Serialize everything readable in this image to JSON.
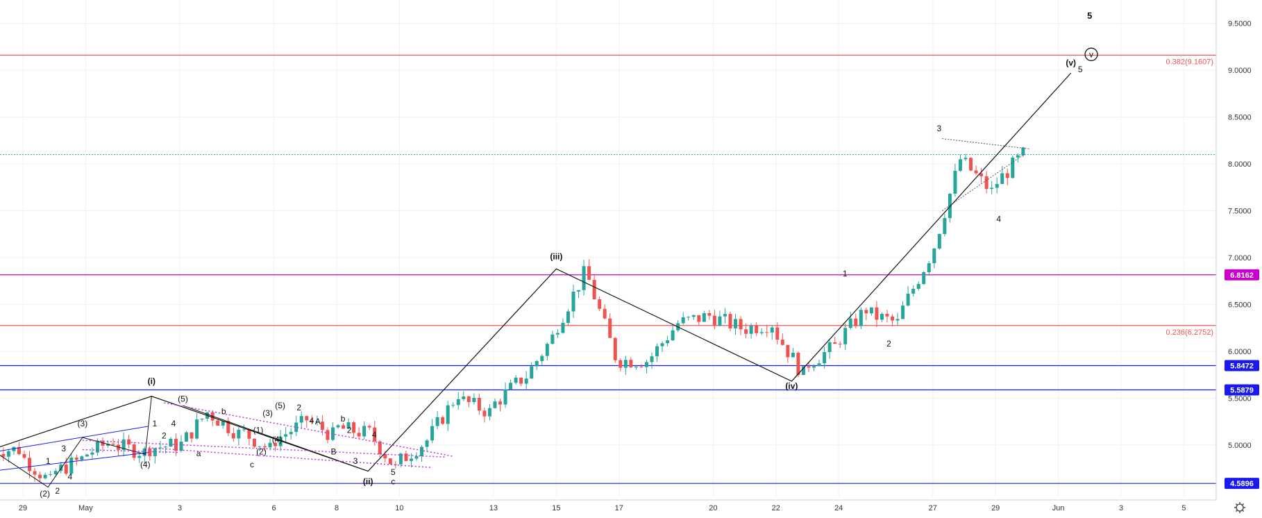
{
  "chart_data": {
    "type": "candlestick",
    "title": "",
    "xlabel": "",
    "ylabel": "",
    "ylim": [
      4.45,
      9.75
    ],
    "y_ticks": [
      "9.5000",
      "9.0000",
      "8.5000",
      "8.0000",
      "7.5000",
      "7.0000",
      "6.5000",
      "6.0000",
      "5.5000",
      "5.0000"
    ],
    "x_ticks": [
      "29",
      "May",
      "3",
      "6",
      "8",
      "10",
      "13",
      "15",
      "17",
      "20",
      "22",
      "24",
      "27",
      "29",
      "Jun",
      "3",
      "5"
    ],
    "colors": {
      "up": "#26a69a",
      "down": "#ef5350",
      "fib": "#ef5350",
      "magenta": "#cc00cc",
      "blue": "#1a1aee",
      "purple_dotted": "#bb33dd",
      "teal_dotted": "#26a69a"
    },
    "price_series": {
      "dates": [
        "Apr 28",
        "Apr 29",
        "Apr 30",
        "May 1",
        "May 2",
        "May 3",
        "May 4",
        "May 5",
        "May 6",
        "May 7",
        "May 8",
        "May 9",
        "May 10",
        "May 11",
        "May 12",
        "May 13",
        "May 14",
        "May 15",
        "May 16",
        "May 17",
        "May 18",
        "May 19",
        "May 20",
        "May 21",
        "May 22",
        "May 23",
        "May 24",
        "May 25",
        "May 26",
        "May 27",
        "May 28",
        "May 29",
        "May 30"
      ],
      "close": [
        4.95,
        4.6,
        4.85,
        5.05,
        4.92,
        5.0,
        5.35,
        5.12,
        4.95,
        5.22,
        5.1,
        5.13,
        4.75,
        5.05,
        5.55,
        5.35,
        5.7,
        6.15,
        6.82,
        5.95,
        5.9,
        6.3,
        6.38,
        6.25,
        6.3,
        5.75,
        6.05,
        6.45,
        6.3,
        7.0,
        8.05,
        7.7,
        8.1
      ]
    },
    "horizontal_levels": [
      {
        "label": "0.382(9.1607)",
        "value": 9.1607,
        "color": "#ef5350",
        "style": "solid"
      },
      {
        "label": "6.8162",
        "value": 6.8162,
        "color": "#cc00cc",
        "style": "solid",
        "badge": true
      },
      {
        "label": "0.236(6.2752)",
        "value": 6.2752,
        "color": "#ef5350",
        "style": "solid"
      },
      {
        "label": "5.8472",
        "value": 5.8472,
        "color": "#1a1aee",
        "style": "solid",
        "badge": true
      },
      {
        "label": "5.5879",
        "value": 5.5879,
        "color": "#1a1aee",
        "style": "solid",
        "badge": true
      },
      {
        "label": "4.5896",
        "value": 4.5896,
        "color": "#1a1aee",
        "style": "solid",
        "badge": true
      },
      {
        "label": "",
        "value": 8.1,
        "color": "#26a69a",
        "style": "dotted"
      }
    ],
    "wave_labels": [
      {
        "text": "(i)",
        "date": "May 3.1",
        "y": 5.65,
        "bold": true
      },
      {
        "text": "(ii)",
        "date": "May 10",
        "y": 4.58,
        "bold": true
      },
      {
        "text": "(iii)",
        "date": "May 16",
        "y": 6.98,
        "bold": true
      },
      {
        "text": "(iv)",
        "date": "May 23.5",
        "y": 5.6,
        "bold": true
      },
      {
        "text": "(v)",
        "date": "Jun 1.4",
        "y": 9.05,
        "bold": true
      },
      {
        "text": "5",
        "date": "Jun 2",
        "y": 9.55,
        "bold": true,
        "big": true
      },
      {
        "text": "v",
        "date": "Jun 2.05",
        "y": 9.14,
        "circled": true
      },
      {
        "text": "5",
        "date": "Jun 1.7",
        "y": 8.98
      },
      {
        "text": "3",
        "date": "May 28.2",
        "y": 8.35
      },
      {
        "text": "4",
        "date": "May 30.1",
        "y": 7.38
      },
      {
        "text": "1",
        "date": "May 25.2",
        "y": 6.8
      },
      {
        "text": "2",
        "date": "May 26.6",
        "y": 6.05
      },
      {
        "text": "(5)",
        "date": "Apr 28.1",
        "y": 5.03
      },
      {
        "text": "(3)",
        "date": "Apr 30.9",
        "y": 5.2
      },
      {
        "text": "(2)",
        "date": "Apr 29.7",
        "y": 4.45
      },
      {
        "text": "(4)",
        "date": "May 2.9",
        "y": 4.76
      },
      {
        "text": "(5)",
        "date": "May 4.1",
        "y": 5.46
      },
      {
        "text": "b",
        "date": "May 5.4",
        "y": 5.33
      },
      {
        "text": "a",
        "date": "May 4.6",
        "y": 4.88
      },
      {
        "text": "c",
        "date": "May 6.3",
        "y": 4.76
      },
      {
        "text": "(3)",
        "date": "May 6.8",
        "y": 5.31
      },
      {
        "text": "(5)",
        "date": "May 7.2",
        "y": 5.39
      },
      {
        "text": "2",
        "date": "May 7.8",
        "y": 5.37
      },
      {
        "text": "4",
        "date": "May 8.2",
        "y": 5.23
      },
      {
        "text": "(1)",
        "date": "May 6.5",
        "y": 5.13
      },
      {
        "text": "(4)",
        "date": "May 7.1",
        "y": 5.03
      },
      {
        "text": "(2)",
        "date": "May 6.6",
        "y": 4.9
      },
      {
        "text": "A",
        "date": "May 8.4",
        "y": 5.22
      },
      {
        "text": "B",
        "date": "May 8.9",
        "y": 4.9
      },
      {
        "text": "b",
        "date": "May 9.2",
        "y": 5.25
      },
      {
        "text": "2",
        "date": "May 9.4",
        "y": 5.13
      },
      {
        "text": "4",
        "date": "May 10.2",
        "y": 5.08
      },
      {
        "text": "3",
        "date": "May 9.6",
        "y": 4.8
      },
      {
        "text": "5",
        "date": "May 10.8",
        "y": 4.68
      },
      {
        "text": "c",
        "date": "May 10.8",
        "y": 4.58
      },
      {
        "text": "1",
        "date": "Apr 29.8",
        "y": 4.8
      },
      {
        "text": "3",
        "date": "Apr 30.3",
        "y": 4.93
      },
      {
        "text": "4",
        "date": "Apr 30.5",
        "y": 4.63
      },
      {
        "text": "2",
        "date": "Apr 30.1",
        "y": 4.48
      },
      {
        "text": "1",
        "date": "May 3.2",
        "y": 5.2
      },
      {
        "text": "4",
        "date": "May 3.8",
        "y": 5.2
      },
      {
        "text": "2",
        "date": "May 3.5",
        "y": 5.07
      }
    ]
  },
  "toolbar": {
    "settings_icon": "gear-icon"
  }
}
